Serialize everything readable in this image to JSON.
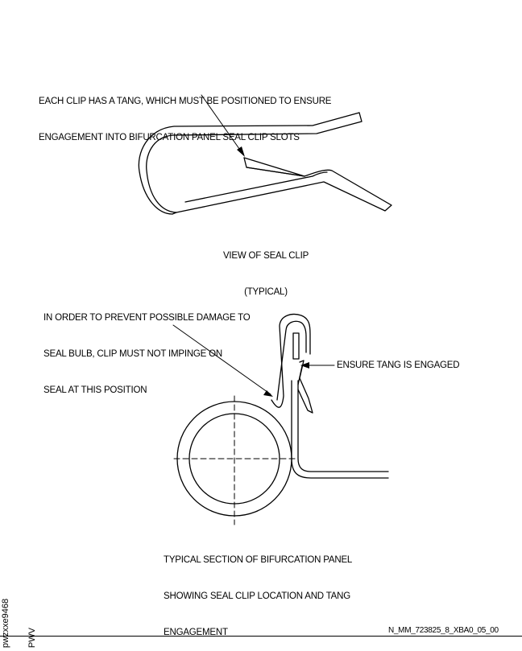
{
  "callouts": {
    "tang_note": [
      "EACH CLIP HAS A TANG, WHICH MUST BE POSITIONED TO ENSURE",
      "ENGAGEMENT INTO BIFURCATION PANEL SEAL CLIP SLOTS"
    ],
    "seal_note": [
      "IN ORDER TO PREVENT POSSIBLE DAMAGE TO",
      "SEAL BULB, CLIP MUST NOT IMPINGE ON",
      "SEAL AT THIS POSITION"
    ],
    "engaged_note": "ENSURE TANG IS ENGAGED"
  },
  "captions": {
    "view": [
      "VIEW OF SEAL CLIP",
      "(TYPICAL)"
    ],
    "section": [
      "TYPICAL SECTION OF BIFURCATION PANEL",
      "SHOWING SEAL CLIP LOCATION AND TANG",
      "ENGAGEMENT"
    ]
  },
  "footer": {
    "figure_id": "N_MM_723825_8_XBA0_05_00",
    "side_code": [
      "pwzxxe9468",
      "PWV"
    ]
  }
}
